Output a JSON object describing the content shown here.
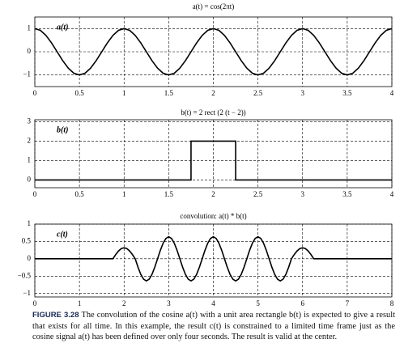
{
  "chart_data": [
    {
      "type": "line",
      "title": "a(t) = cos(2πt)",
      "x": [
        0,
        0.0625,
        0.125,
        0.1875,
        0.25,
        0.3125,
        0.375,
        0.4375,
        0.5,
        0.5625,
        0.625,
        0.6875,
        0.75,
        0.8125,
        0.875,
        0.9375,
        1,
        1.0625,
        1.125,
        1.1875,
        1.25,
        1.3125,
        1.375,
        1.4375,
        1.5,
        1.5625,
        1.625,
        1.6875,
        1.75,
        1.8125,
        1.875,
        1.9375,
        2,
        2.0625,
        2.125,
        2.1875,
        2.25,
        2.3125,
        2.375,
        2.4375,
        2.5,
        2.5625,
        2.625,
        2.6875,
        2.75,
        2.8125,
        2.875,
        2.9375,
        3,
        3.0625,
        3.125,
        3.1875,
        3.25,
        3.3125,
        3.375,
        3.4375,
        3.5,
        3.5625,
        3.625,
        3.6875,
        3.75,
        3.8125,
        3.875,
        3.9375,
        4
      ],
      "series": [
        {
          "name": "a(t)",
          "color": "#000000",
          "values": [
            1,
            0.924,
            0.707,
            0.383,
            0,
            -0.383,
            -0.707,
            -0.924,
            -1,
            -0.924,
            -0.707,
            -0.383,
            0,
            0.383,
            0.707,
            0.924,
            1,
            0.924,
            0.707,
            0.383,
            0,
            -0.383,
            -0.707,
            -0.924,
            -1,
            -0.924,
            -0.707,
            -0.383,
            0,
            0.383,
            0.707,
            0.924,
            1,
            0.924,
            0.707,
            0.383,
            0,
            -0.383,
            -0.707,
            -0.924,
            -1,
            -0.924,
            -0.707,
            -0.383,
            0,
            0.383,
            0.707,
            0.924,
            1,
            0.924,
            0.707,
            0.383,
            0,
            -0.383,
            -0.707,
            -0.924,
            -1,
            -0.924,
            -0.707,
            -0.383,
            0,
            0.383,
            0.707,
            0.924,
            1
          ]
        }
      ],
      "xlim": [
        0,
        4
      ],
      "xticks": [
        0,
        0.5,
        1,
        1.5,
        2,
        2.5,
        3,
        3.5,
        4
      ],
      "ylim": [
        -1.5,
        1.5
      ],
      "yticks": [
        {
          "value": -1,
          "label": "−1"
        },
        0,
        1
      ],
      "grid": true
    },
    {
      "type": "line",
      "title": "b(t) = 2 rect (2 (t − 2))",
      "x": [
        0,
        1.75,
        1.75,
        2.25,
        2.25,
        4
      ],
      "series": [
        {
          "name": "b(t)",
          "color": "#000000",
          "values": [
            0,
            0,
            2,
            2,
            0,
            0
          ]
        }
      ],
      "xlim": [
        0,
        4
      ],
      "xticks": [
        0,
        0.5,
        1,
        1.5,
        2,
        2.5,
        3,
        3.5,
        4
      ],
      "ylim": [
        -0.4,
        3.1
      ],
      "yticks": [
        0,
        1,
        2,
        3
      ],
      "grid": true
    },
    {
      "type": "line",
      "title": "convolution: a(t) * b(t)",
      "x": [
        0,
        1.75,
        1.8125,
        1.875,
        1.9375,
        2,
        2.0625,
        2.125,
        2.1875,
        2.25,
        2.3125,
        2.375,
        2.4375,
        2.5,
        2.5625,
        2.625,
        2.6875,
        2.75,
        2.8125,
        2.875,
        2.9375,
        3,
        3.0625,
        3.125,
        3.1875,
        3.25,
        3.3125,
        3.375,
        3.4375,
        3.5,
        3.5625,
        3.625,
        3.6875,
        3.75,
        3.8125,
        3.875,
        3.9375,
        4,
        4.0625,
        4.125,
        4.1875,
        4.25,
        4.3125,
        4.375,
        4.4375,
        4.5,
        4.5625,
        4.625,
        4.6875,
        4.75,
        4.8125,
        4.875,
        4.9375,
        5,
        5.0625,
        5.125,
        5.1875,
        5.25,
        5.3125,
        5.375,
        5.4375,
        5.5,
        5.5625,
        5.625,
        5.6875,
        5.75,
        5.8125,
        5.875,
        5.9375,
        6,
        6.0625,
        6.125,
        6.1875,
        6.25,
        8
      ],
      "series": [
        {
          "name": "c(t)",
          "color": "#000000",
          "values": [
            0,
            0,
            0.122,
            0.225,
            0.294,
            0.318,
            0.294,
            0.225,
            0.122,
            0,
            -0.244,
            -0.45,
            -0.588,
            -0.637,
            -0.588,
            -0.45,
            -0.244,
            0,
            0.244,
            0.45,
            0.588,
            0.637,
            0.588,
            0.45,
            0.244,
            0,
            -0.244,
            -0.45,
            -0.588,
            -0.637,
            -0.588,
            -0.45,
            -0.244,
            0,
            0.244,
            0.45,
            0.588,
            0.637,
            0.588,
            0.45,
            0.244,
            0,
            -0.244,
            -0.45,
            -0.588,
            -0.637,
            -0.588,
            -0.45,
            -0.244,
            0,
            0.244,
            0.45,
            0.588,
            0.637,
            0.588,
            0.45,
            0.244,
            0,
            -0.244,
            -0.45,
            -0.588,
            -0.637,
            -0.588,
            -0.45,
            -0.244,
            0,
            0.122,
            0.225,
            0.294,
            0.318,
            0.294,
            0.225,
            0.122,
            0,
            0
          ]
        }
      ],
      "xlim": [
        0,
        8
      ],
      "xticks": [
        0,
        1,
        2,
        3,
        4,
        5,
        6,
        7,
        8
      ],
      "ylim": [
        -1.1,
        1
      ],
      "yticks": [
        {
          "value": -1,
          "label": "−1"
        },
        {
          "value": -0.5,
          "label": "−0.5"
        },
        0,
        0.5,
        1
      ],
      "grid": true
    }
  ],
  "caption": {
    "label": "FIGURE 3.28",
    "text": "The convolution of the cosine a(t) with a unit area rectangle b(t) is expected to give a result that exists for all time. In this example, the result c(t) is constrained to a limited time frame just as the cosine signal a(t) has been defined over only four seconds. The result is valid at the center."
  }
}
